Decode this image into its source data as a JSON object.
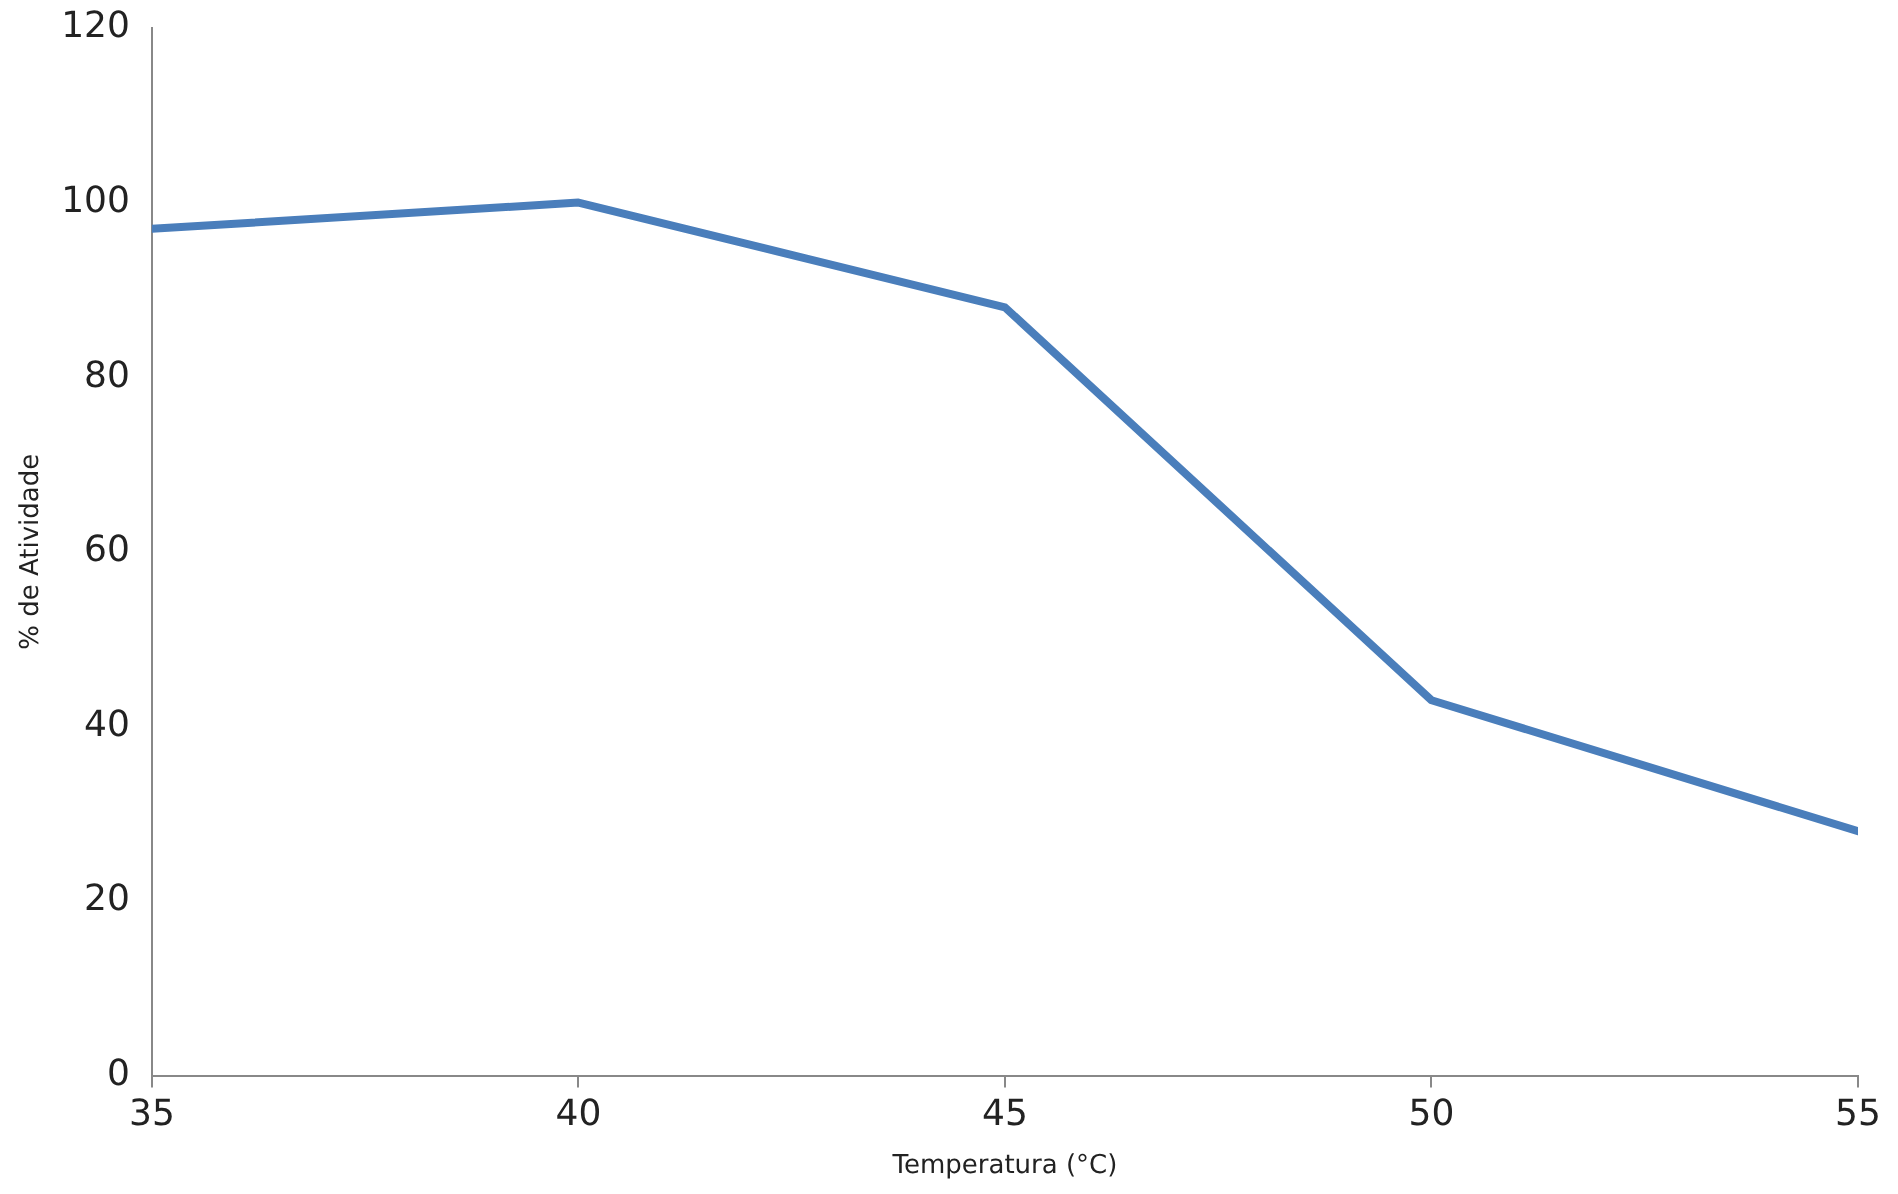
{
  "chart_data": {
    "type": "line",
    "xlabel": "Temperatura (°C)",
    "ylabel": "% de Atividade",
    "x": [
      35,
      40,
      45,
      50,
      55
    ],
    "series": [
      {
        "color": "#4a7ebb",
        "values": [
          97,
          100,
          88,
          43,
          28
        ]
      }
    ],
    "xlim": [
      35,
      55
    ],
    "xticks": [
      35,
      40,
      45,
      50,
      55
    ],
    "ylim": [
      0,
      120
    ],
    "yticks": [
      0,
      20,
      40,
      60,
      80,
      100,
      120
    ],
    "grid": false,
    "legend": false,
    "marker": "none",
    "line_style": "solid"
  }
}
